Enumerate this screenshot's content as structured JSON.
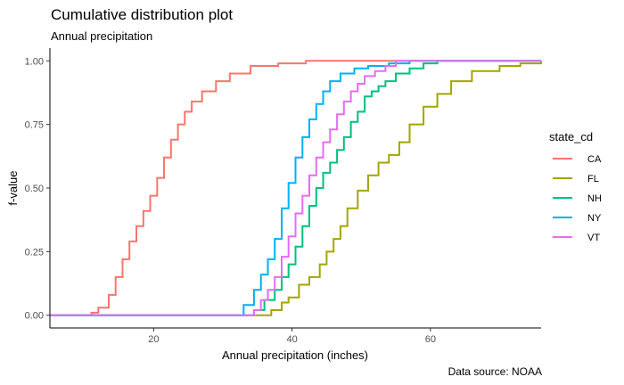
{
  "chart_data": {
    "type": "line",
    "step": true,
    "title": "Cumulative distribution plot",
    "subtitle": "Annual precipitation",
    "xlabel": "Annual precipitation (inches)",
    "ylabel": "f-value",
    "caption": "Data source: NOAA",
    "xlim": [
      5,
      76
    ],
    "ylim": [
      -0.05,
      1.05
    ],
    "xticks": [
      20,
      40,
      60
    ],
    "yticks": [
      0.0,
      0.25,
      0.5,
      0.75,
      1.0
    ],
    "ytick_labels": [
      "0.00",
      "0.25",
      "0.50",
      "0.75",
      "1.00"
    ],
    "grid": false,
    "legend": {
      "title": "state_cd",
      "position": "right"
    },
    "series": [
      {
        "name": "CA",
        "color": "#F8766D",
        "x": [
          7.5,
          11,
          12,
          13.5,
          14.5,
          15.5,
          16.5,
          17.5,
          18.5,
          19.5,
          20.5,
          21.5,
          22.5,
          23.5,
          24.5,
          25.5,
          27,
          29,
          31,
          34,
          38,
          42,
          50,
          76
        ],
        "y": [
          0.0,
          0.01,
          0.03,
          0.08,
          0.15,
          0.22,
          0.29,
          0.35,
          0.41,
          0.47,
          0.54,
          0.62,
          0.69,
          0.75,
          0.8,
          0.84,
          0.88,
          0.92,
          0.95,
          0.98,
          0.99,
          1.0,
          1.0,
          1.0
        ]
      },
      {
        "name": "FL",
        "color": "#A3A500",
        "x": [
          5,
          32,
          33,
          35,
          37,
          38.5,
          39.5,
          41,
          42.5,
          44,
          45,
          46,
          47,
          48,
          49.5,
          51,
          52.5,
          54,
          55.5,
          57,
          59,
          61,
          63,
          66,
          70,
          73,
          76
        ],
        "y": [
          0.0,
          0.0,
          0.0,
          0.0,
          0.02,
          0.05,
          0.07,
          0.12,
          0.15,
          0.2,
          0.25,
          0.3,
          0.35,
          0.42,
          0.49,
          0.55,
          0.6,
          0.63,
          0.68,
          0.75,
          0.82,
          0.87,
          0.92,
          0.96,
          0.98,
          0.99,
          1.0
        ]
      },
      {
        "name": "NH",
        "color": "#00BF7D",
        "x": [
          5,
          33,
          34.5,
          36,
          37.5,
          38.5,
          39.5,
          40.5,
          41.5,
          42.5,
          43.5,
          44.5,
          45.5,
          46.5,
          47.5,
          48.5,
          49.5,
          50.5,
          51.5,
          52.5,
          53.5,
          55,
          57,
          59,
          61,
          65,
          76
        ],
        "y": [
          0.0,
          0.0,
          0.02,
          0.06,
          0.1,
          0.15,
          0.2,
          0.27,
          0.35,
          0.43,
          0.5,
          0.56,
          0.6,
          0.65,
          0.7,
          0.76,
          0.8,
          0.86,
          0.88,
          0.9,
          0.92,
          0.95,
          0.97,
          0.99,
          1.0,
          1.0,
          1.0
        ]
      },
      {
        "name": "NY",
        "color": "#00B0F6",
        "x": [
          5,
          31.5,
          33,
          34.5,
          35.5,
          36.5,
          37.5,
          38.5,
          39.5,
          40.5,
          41.5,
          42.5,
          43.5,
          44.5,
          45.5,
          47,
          49,
          51,
          54,
          57,
          76
        ],
        "y": [
          0.0,
          0.0,
          0.04,
          0.1,
          0.16,
          0.22,
          0.3,
          0.42,
          0.52,
          0.62,
          0.7,
          0.77,
          0.83,
          0.88,
          0.92,
          0.95,
          0.97,
          0.98,
          0.99,
          1.0,
          1.0
        ]
      },
      {
        "name": "VT",
        "color": "#E76BF3",
        "x": [
          5,
          33,
          34.5,
          35.5,
          36.5,
          37.5,
          38.5,
          39.5,
          40.5,
          41.5,
          42.5,
          43.5,
          44.5,
          45.5,
          46.5,
          47.5,
          48.5,
          49.5,
          50.5,
          52,
          53.5,
          55,
          76
        ],
        "y": [
          0.0,
          0.0,
          0.02,
          0.06,
          0.1,
          0.15,
          0.23,
          0.31,
          0.4,
          0.47,
          0.55,
          0.62,
          0.68,
          0.73,
          0.79,
          0.84,
          0.88,
          0.91,
          0.94,
          0.96,
          0.98,
          1.0,
          1.0
        ]
      }
    ]
  }
}
